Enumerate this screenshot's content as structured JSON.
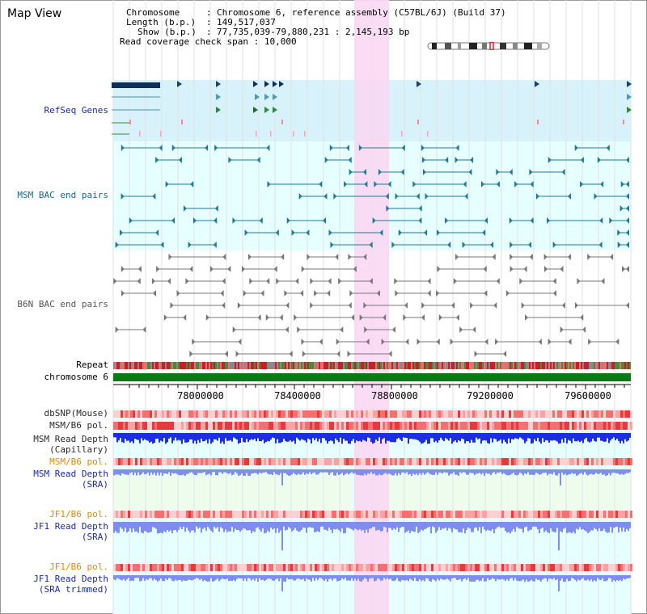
{
  "view_title": "Map View",
  "info": {
    "chromosome_label": "Chromosome",
    "chromosome_value": "Chromosome 6, reference assembly (C57BL/6J) (Build 37)",
    "length_label": "Length (b.p.)",
    "length_value": "149,517,037",
    "show_label": "Show (b.p.)",
    "show_value": "77,735,039-79,880,231 : 2,145,193 bp",
    "span_label": "Read coverage check span",
    "span_value": "10,000"
  },
  "tracks": {
    "refseq": "RefSeq Genes",
    "msm_bac": "MSM BAC end pairs",
    "b6n_bac": "B6N BAC end pairs",
    "repeat": "Repeat",
    "chromosome": "chromosome 6",
    "dbsnp": "dbSNP(Mouse)",
    "msm_b6_pol_1": "MSM/B6 pol.",
    "msm_depth_cap_1": "MSM Read Depth",
    "msm_depth_cap_2": "(Capillary)",
    "msm_b6_pol_2": "MSM/B6 pol.",
    "msm_depth_sra_1": "MSM Read Depth",
    "msm_depth_sra_2": "(SRA)",
    "jf1_b6_pol_1": "JF1/B6 pol.",
    "jf1_depth_sra_1": "JF1 Read Depth",
    "jf1_depth_sra_2": "(SRA)",
    "jf1_b6_pol_2": "JF1/B6 pol.",
    "jf1_depth_trim_1": "JF1 Read Depth",
    "jf1_depth_trim_2": "(SRA trimmed)"
  },
  "axis": {
    "ticks": [
      "78000000",
      "78400000",
      "78800000",
      "79200000",
      "79600000"
    ]
  },
  "colors": {
    "refseq_bg": "#d8f2fb",
    "lower_bg": "#e6ffff",
    "highlight": "#f9d8f3",
    "msm_glyph": "#1e7a96",
    "b6n_glyph": "#777777",
    "chromosome_bar": "#0a7a12",
    "capillary_depth": "#1b2ee0",
    "sra_depth": "#7f8cf0"
  }
}
